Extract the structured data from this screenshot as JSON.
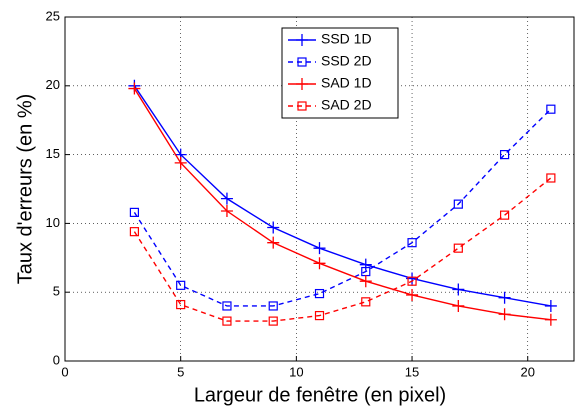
{
  "chart_data": {
    "type": "line",
    "xlabel": "Largeur de fenêtre (en pixel)",
    "ylabel": "Taux d'erreurs (en %)",
    "x": [
      3,
      5,
      7,
      9,
      11,
      13,
      15,
      17,
      19,
      21
    ],
    "series": [
      {
        "name": "SSD 1D",
        "color": "#0000ff",
        "dash": false,
        "marker": "plus",
        "values": [
          20,
          15,
          11.8,
          9.7,
          8.2,
          7.0,
          6.0,
          5.2,
          4.6,
          4.0
        ]
      },
      {
        "name": "SSD 2D",
        "color": "#0000ff",
        "dash": true,
        "marker": "square",
        "values": [
          10.8,
          5.5,
          4.0,
          4.0,
          4.9,
          6.5,
          8.6,
          11.4,
          15.0,
          18.3
        ]
      },
      {
        "name": "SAD 1D",
        "color": "#ff0000",
        "dash": false,
        "marker": "plus",
        "values": [
          19.8,
          14.4,
          10.9,
          8.6,
          7.1,
          5.8,
          4.8,
          4.0,
          3.4,
          3.0
        ]
      },
      {
        "name": "SAD 2D",
        "color": "#ff0000",
        "dash": true,
        "marker": "square",
        "values": [
          9.4,
          4.1,
          2.9,
          2.9,
          3.3,
          4.3,
          5.8,
          8.2,
          10.6,
          13.3
        ]
      }
    ],
    "xlim": [
      0,
      22
    ],
    "xticks": [
      0,
      5,
      10,
      15,
      20
    ],
    "ylim": [
      0,
      25
    ],
    "yticks": [
      0,
      5,
      10,
      15,
      20,
      25
    ],
    "grid": true,
    "legend": "top"
  }
}
